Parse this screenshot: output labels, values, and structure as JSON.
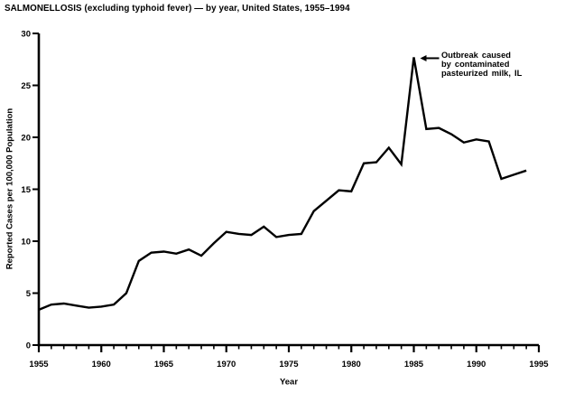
{
  "chart_data": {
    "type": "line",
    "title": "SALMONELLOSIS (excluding typhoid fever) — by year, United States, 1955–1994",
    "xlabel": "Year",
    "ylabel": "Reported Cases per 100,000 Population",
    "series_name": "Reported salmonellosis cases per 100,000 population",
    "x": [
      1955,
      1956,
      1957,
      1958,
      1959,
      1960,
      1961,
      1962,
      1963,
      1964,
      1965,
      1966,
      1967,
      1968,
      1969,
      1970,
      1971,
      1972,
      1973,
      1974,
      1975,
      1976,
      1977,
      1978,
      1979,
      1980,
      1981,
      1982,
      1983,
      1984,
      1985,
      1986,
      1987,
      1988,
      1989,
      1990,
      1991,
      1992,
      1993,
      1994
    ],
    "values": [
      3.4,
      3.9,
      4.0,
      3.8,
      3.6,
      3.7,
      3.9,
      5.0,
      8.1,
      8.9,
      9.0,
      8.8,
      9.2,
      8.6,
      9.8,
      10.9,
      10.7,
      10.6,
      11.4,
      10.4,
      10.6,
      10.7,
      12.9,
      13.9,
      14.9,
      14.8,
      17.5,
      17.6,
      19.0,
      17.4,
      27.7,
      20.8,
      20.9,
      20.3,
      19.5,
      19.8,
      19.6,
      16.0,
      16.4,
      16.8
    ],
    "xlim": [
      1955,
      1995
    ],
    "ylim": [
      0,
      30
    ],
    "x_major_ticks": [
      1955,
      1960,
      1965,
      1970,
      1975,
      1980,
      1985,
      1990,
      1995
    ],
    "x_minor_tick_interval": 1,
    "y_ticks": [
      0,
      5,
      10,
      15,
      20,
      25,
      30
    ],
    "grid": false,
    "legend": false,
    "line_color": "#000000",
    "background_color": "#ffffff",
    "annotation": {
      "lines": [
        "Outbreak caused",
        "by contaminated",
        "pasteurized milk, IL"
      ],
      "arrow_points_to": {
        "x": 1985,
        "y": 27.7
      }
    }
  }
}
